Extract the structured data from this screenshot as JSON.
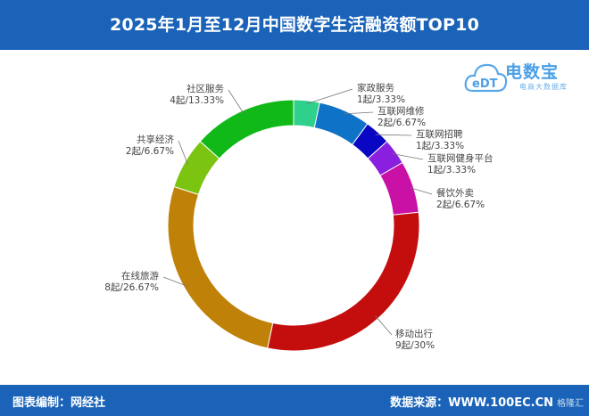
{
  "header": {
    "title": "2025年1月至12月中国数字生活融资额TOP10"
  },
  "footer": {
    "left": "图表编制：网经社",
    "right": "数据来源：WWW.100EC.CN",
    "corner_watermark": "格隆汇"
  },
  "logo": {
    "name": "电数宝",
    "sub": "电商大数据库",
    "icon_text": "eDT"
  },
  "chart_data": {
    "type": "pie",
    "donut": true,
    "title": "2025年1月至12月中国数字生活融资额TOP10",
    "unit": "起",
    "slices": [
      {
        "name": "家政服务",
        "value": 1,
        "percent": "3.33%",
        "color": "#2fcf8c"
      },
      {
        "name": "互联网维修",
        "value": 2,
        "percent": "6.67%",
        "color": "#0e72c7"
      },
      {
        "name": "互联网招聘",
        "value": 1,
        "percent": "3.33%",
        "color": "#0a07c4"
      },
      {
        "name": "互联网健身平台",
        "value": 1,
        "percent": "3.33%",
        "color": "#8a1fe0"
      },
      {
        "name": "餐饮外卖",
        "value": 2,
        "percent": "6.67%",
        "color": "#c911a6"
      },
      {
        "name": "移动出行",
        "value": 9,
        "percent": "30%",
        "color": "#c40e0e"
      },
      {
        "name": "在线旅游",
        "value": 8,
        "percent": "26.67%",
        "color": "#c08108"
      },
      {
        "name": "共享经济",
        "value": 2,
        "percent": "6.67%",
        "color": "#7cc412"
      },
      {
        "name": "社区服务",
        "value": 4,
        "percent": "13.33%",
        "color": "#10b818"
      }
    ]
  }
}
